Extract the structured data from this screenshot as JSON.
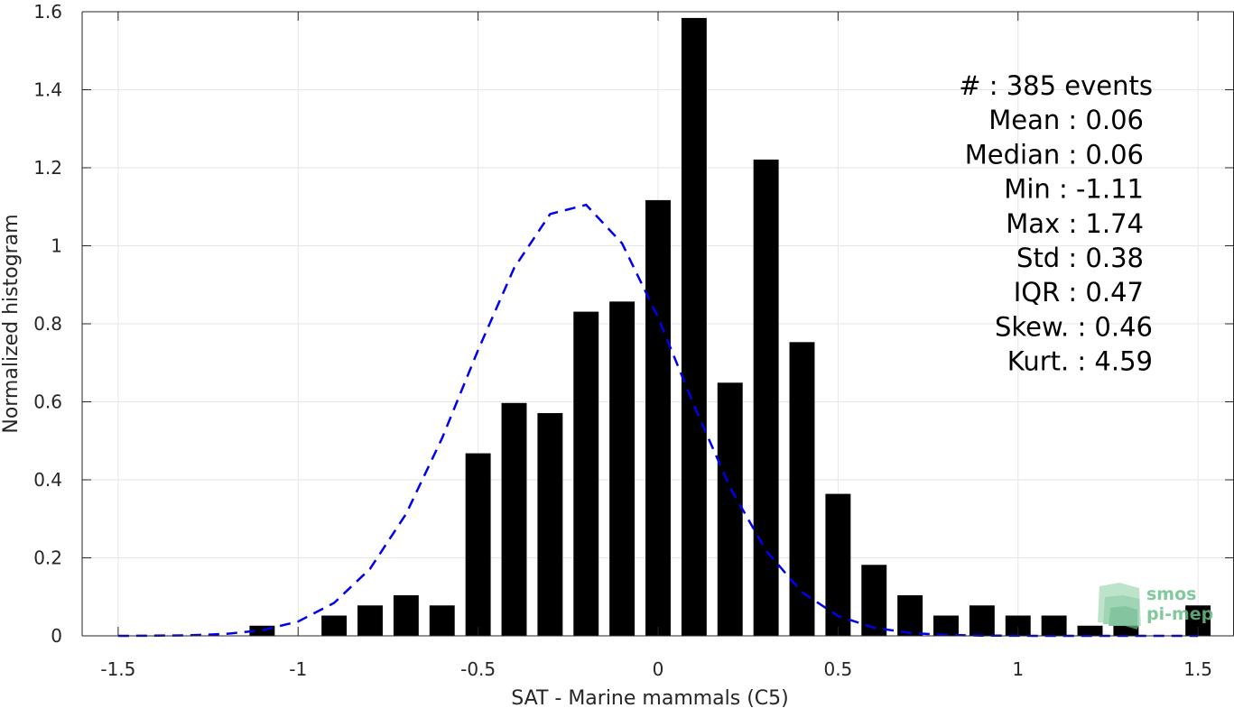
{
  "chart_data": {
    "type": "bar",
    "xlabel": "SAT - Marine mammals (C5)",
    "ylabel": "Normalized histogram",
    "xlim": [
      -1.6,
      1.6
    ],
    "ylim": [
      0,
      1.6
    ],
    "xticks": [
      -1.5,
      -1,
      -0.5,
      0,
      0.5,
      1,
      1.5
    ],
    "xtick_labels": [
      "-1.5",
      "-1",
      "-0.5",
      "0",
      "0.5",
      "1",
      "1.5"
    ],
    "yticks": [
      0,
      0.2,
      0.4,
      0.6,
      0.8,
      1,
      1.2,
      1.4,
      1.6
    ],
    "ytick_labels": [
      "0",
      "0.2",
      "0.4",
      "0.6",
      "0.8",
      "1",
      "1.2",
      "1.4",
      "1.6"
    ],
    "grid": true,
    "bar_width": 0.07,
    "bar_color": "#000000",
    "bars": [
      {
        "x": -1.1,
        "y": 0.026
      },
      {
        "x": -0.9,
        "y": 0.052
      },
      {
        "x": -0.8,
        "y": 0.078
      },
      {
        "x": -0.7,
        "y": 0.104
      },
      {
        "x": -0.6,
        "y": 0.078
      },
      {
        "x": -0.5,
        "y": 0.468
      },
      {
        "x": -0.4,
        "y": 0.597
      },
      {
        "x": -0.3,
        "y": 0.571
      },
      {
        "x": -0.2,
        "y": 0.831
      },
      {
        "x": -0.1,
        "y": 0.857
      },
      {
        "x": 0.0,
        "y": 1.117
      },
      {
        "x": 0.1,
        "y": 1.584
      },
      {
        "x": 0.2,
        "y": 0.649
      },
      {
        "x": 0.3,
        "y": 1.221
      },
      {
        "x": 0.4,
        "y": 0.753
      },
      {
        "x": 0.5,
        "y": 0.364
      },
      {
        "x": 0.6,
        "y": 0.182
      },
      {
        "x": 0.7,
        "y": 0.104
      },
      {
        "x": 0.8,
        "y": 0.052
      },
      {
        "x": 0.9,
        "y": 0.078
      },
      {
        "x": 1.0,
        "y": 0.052
      },
      {
        "x": 1.1,
        "y": 0.052
      },
      {
        "x": 1.2,
        "y": 0.026
      },
      {
        "x": 1.3,
        "y": 0.026
      },
      {
        "x": 1.5,
        "y": 0.078
      }
    ],
    "fit_curve": {
      "style": "dashed",
      "color": "#0000ee",
      "x": [
        -1.5,
        -1.4,
        -1.3,
        -1.2,
        -1.1,
        -1.0,
        -0.9,
        -0.8,
        -0.7,
        -0.6,
        -0.5,
        -0.4,
        -0.3,
        -0.2,
        -0.1,
        0.0,
        0.1,
        0.2,
        0.3,
        0.4,
        0.5,
        0.6,
        0.7,
        0.8,
        0.9,
        1.0,
        1.1,
        1.2,
        1.3,
        1.4,
        1.5
      ],
      "y": [
        0.0001,
        0.0004,
        0.0015,
        0.005,
        0.0143,
        0.0368,
        0.0843,
        0.172,
        0.3128,
        0.5071,
        0.7324,
        0.9428,
        1.0813,
        1.105,
        1.0062,
        0.8164,
        0.5902,
        0.3803,
        0.2184,
        0.1117,
        0.0509,
        0.0207,
        0.0075,
        0.0024,
        0.0007,
        0.0002,
        0.0,
        0.0,
        0.0,
        0.0,
        0.0
      ]
    },
    "stats": [
      "#  : 385 events",
      "Mean : 0.06",
      "Median : 0.06",
      "Min : -1.11",
      "Max : 1.74",
      "Std : 0.38",
      "IQR : 0.47",
      "Skew. : 0.46",
      "Kurt. : 4.59"
    ]
  },
  "logo": {
    "line1": "smos",
    "line2": "pi-mep",
    "color": "#6cbf8a"
  }
}
